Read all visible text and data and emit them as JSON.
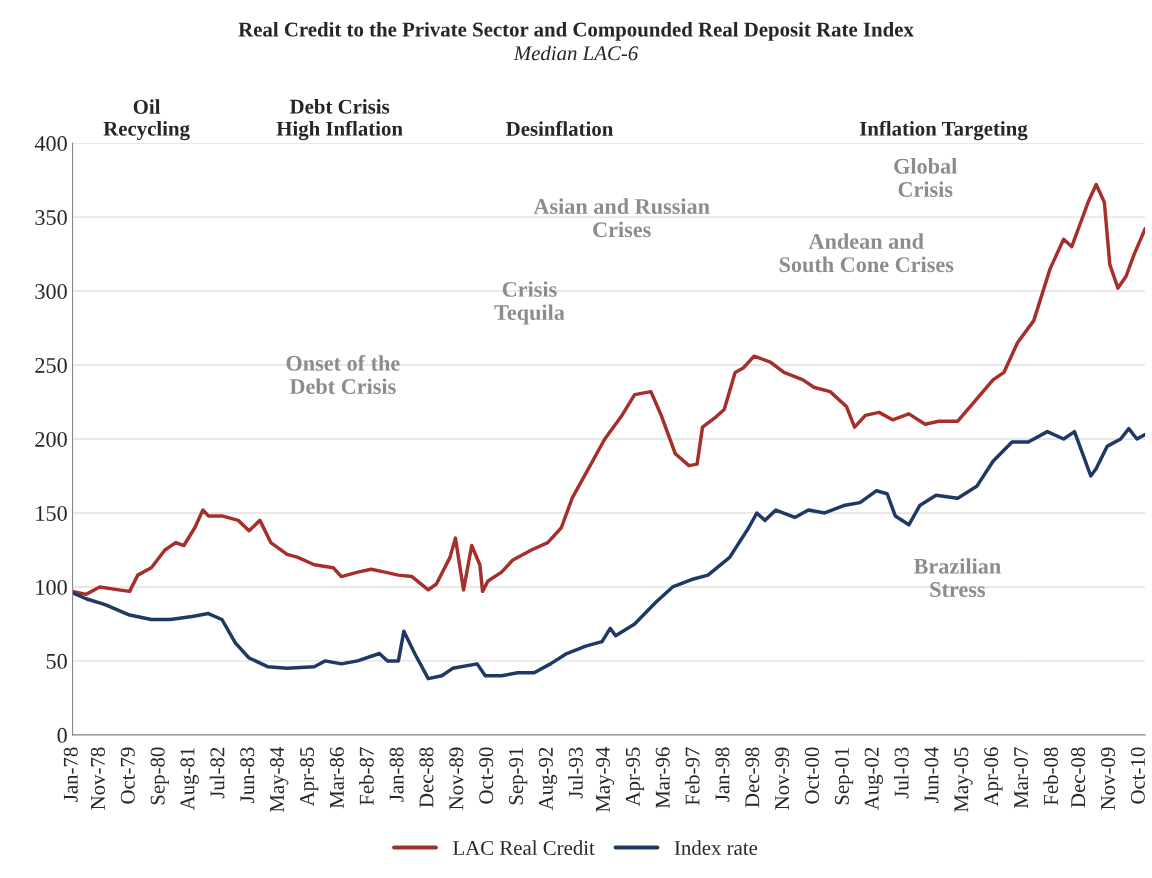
{
  "chart_data": {
    "type": "line",
    "title": "Real Credit to the Private Sector and Compounded Real Deposit Rate Index",
    "subtitle": "Median LAC-6",
    "annotations": [
      "Oil\nRecycling",
      "Debt Crisis\nHigh Inflation",
      "Desinflation",
      "Inflation Targeting",
      "Onset of the\nDebt Crisis",
      "Crisis\nTequila",
      "Asian and Russian\nCrises",
      "Andean and\nSouth Cone Crises",
      "Global\nCrisis",
      "Brazilian\nStress"
    ],
    "series": [
      {
        "name": "LAC Real Credit",
        "color": "#a5302b",
        "x": [
          "1978-01",
          "1978-06",
          "1978-11",
          "1979-06",
          "1979-10",
          "1980-01",
          "1980-06",
          "1980-11",
          "1981-03",
          "1981-06",
          "1981-10",
          "1982-01",
          "1982-03",
          "1982-08",
          "1983-02",
          "1983-06",
          "1983-10",
          "1984-02",
          "1984-08",
          "1984-12",
          "1985-06",
          "1986-01",
          "1986-04",
          "1986-10",
          "1987-03",
          "1987-08",
          "1988-01",
          "1988-06",
          "1988-12",
          "1989-03",
          "1989-08",
          "1989-10",
          "1990-01",
          "1990-04",
          "1990-07",
          "1990-08",
          "1990-10",
          "1991-03",
          "1991-07",
          "1992-02",
          "1992-08",
          "1993-01",
          "1993-05",
          "1993-11",
          "1994-05",
          "1994-11",
          "1995-04",
          "1995-10",
          "1996-02",
          "1996-07",
          "1996-12",
          "1997-03",
          "1997-05",
          "1997-10",
          "1998-01",
          "1998-05",
          "1998-08",
          "1998-12",
          "1999-06",
          "1999-11",
          "2000-06",
          "2000-10",
          "2001-04",
          "2001-10",
          "2002-01",
          "2002-05",
          "2002-10",
          "2003-03",
          "2003-09",
          "2004-03",
          "2004-08",
          "2005-03",
          "2005-09",
          "2006-04",
          "2006-08",
          "2007-01",
          "2007-07",
          "2008-01",
          "2008-06",
          "2008-09",
          "2008-12",
          "2009-03",
          "2009-06",
          "2009-09",
          "2009-11",
          "2010-02",
          "2010-05",
          "2010-08",
          "2010-12"
        ],
        "values": [
          97,
          95,
          100,
          98,
          97,
          108,
          113,
          125,
          130,
          128,
          140,
          152,
          148,
          148,
          145,
          138,
          145,
          130,
          122,
          120,
          115,
          113,
          107,
          110,
          112,
          110,
          108,
          107,
          98,
          102,
          120,
          133,
          98,
          128,
          115,
          97,
          104,
          110,
          118,
          125,
          130,
          140,
          160,
          180,
          200,
          215,
          230,
          232,
          215,
          190,
          182,
          183,
          208,
          215,
          220,
          245,
          248,
          256,
          252,
          245,
          240,
          235,
          232,
          222,
          208,
          216,
          218,
          213,
          217,
          210,
          212,
          212,
          225,
          240,
          245,
          265,
          280,
          315,
          335,
          330,
          345,
          360,
          372,
          360,
          318,
          302,
          310,
          325,
          342
        ]
      },
      {
        "name": "Index rate",
        "color": "#1f3864",
        "x": [
          "1978-01",
          "1978-06",
          "1979-01",
          "1979-10",
          "1980-06",
          "1981-01",
          "1981-09",
          "1982-03",
          "1982-08",
          "1983-01",
          "1983-06",
          "1984-01",
          "1984-08",
          "1985-06",
          "1985-10",
          "1986-04",
          "1986-10",
          "1987-06",
          "1987-09",
          "1988-01",
          "1988-03",
          "1988-07",
          "1988-12",
          "1989-05",
          "1989-09",
          "1990-06",
          "1990-09",
          "1991-03",
          "1991-09",
          "1992-03",
          "1992-09",
          "1993-03",
          "1993-10",
          "1994-04",
          "1994-07",
          "1994-09",
          "1995-04",
          "1995-12",
          "1996-06",
          "1997-01",
          "1997-07",
          "1998-03",
          "1998-10",
          "1999-01",
          "1999-04",
          "1999-08",
          "2000-03",
          "2000-08",
          "2001-02",
          "2001-09",
          "2002-03",
          "2002-09",
          "2003-01",
          "2003-04",
          "2003-09",
          "2004-01",
          "2004-07",
          "2005-03",
          "2005-10",
          "2006-04",
          "2006-11",
          "2007-05",
          "2007-12",
          "2008-06",
          "2008-10",
          "2009-02",
          "2009-04",
          "2009-06",
          "2009-10",
          "2010-03",
          "2010-06",
          "2010-09",
          "2010-12"
        ],
        "values": [
          96,
          92,
          88,
          81,
          78,
          78,
          80,
          82,
          78,
          62,
          52,
          46,
          45,
          46,
          50,
          48,
          50,
          55,
          50,
          50,
          70,
          55,
          38,
          40,
          45,
          48,
          40,
          40,
          42,
          42,
          48,
          55,
          60,
          63,
          72,
          67,
          75,
          90,
          100,
          105,
          108,
          120,
          140,
          150,
          145,
          152,
          147,
          152,
          150,
          155,
          157,
          165,
          163,
          148,
          142,
          155,
          162,
          160,
          168,
          185,
          198,
          198,
          205,
          200,
          205,
          185,
          175,
          180,
          195,
          200,
          207,
          200,
          203
        ]
      }
    ],
    "xlim": [
      "1978-01",
      "2010-12"
    ],
    "xticks": [
      {
        "value": "1978-01",
        "label": "Jan-78"
      },
      {
        "value": "1978-11",
        "label": "Nov-78"
      },
      {
        "value": "1979-10",
        "label": "Oct-79"
      },
      {
        "value": "1980-09",
        "label": "Sep-80"
      },
      {
        "value": "1981-08",
        "label": "Aug-81"
      },
      {
        "value": "1982-07",
        "label": "Jul-82"
      },
      {
        "value": "1983-06",
        "label": "Jun-83"
      },
      {
        "value": "1984-05",
        "label": "May-84"
      },
      {
        "value": "1985-04",
        "label": "Apr-85"
      },
      {
        "value": "1986-03",
        "label": "Mar-86"
      },
      {
        "value": "1987-02",
        "label": "Feb-87"
      },
      {
        "value": "1988-01",
        "label": "Jan-88"
      },
      {
        "value": "1988-12",
        "label": "Dec-88"
      },
      {
        "value": "1989-11",
        "label": "Nov-89"
      },
      {
        "value": "1990-10",
        "label": "Oct-90"
      },
      {
        "value": "1991-09",
        "label": "Sep-91"
      },
      {
        "value": "1992-08",
        "label": "Aug-92"
      },
      {
        "value": "1993-07",
        "label": "Jul-93"
      },
      {
        "value": "1994-05",
        "label": "May-94"
      },
      {
        "value": "1995-04",
        "label": "Apr-95"
      },
      {
        "value": "1996-03",
        "label": "Mar-96"
      },
      {
        "value": "1997-02",
        "label": "Feb-97"
      },
      {
        "value": "1998-01",
        "label": "Jan-98"
      },
      {
        "value": "1998-12",
        "label": "Dec-98"
      },
      {
        "value": "1999-11",
        "label": "Nov-99"
      },
      {
        "value": "2000-10",
        "label": "Oct-00"
      },
      {
        "value": "2001-09",
        "label": "Sep-01"
      },
      {
        "value": "2002-08",
        "label": "Aug-02"
      },
      {
        "value": "2003-07",
        "label": "Jul-03"
      },
      {
        "value": "2004-06",
        "label": "Jun-04"
      },
      {
        "value": "2005-05",
        "label": "May-05"
      },
      {
        "value": "2006-04",
        "label": "Apr-06"
      },
      {
        "value": "2007-03",
        "label": "Mar-07"
      },
      {
        "value": "2008-02",
        "label": "Feb-08"
      },
      {
        "value": "2008-12",
        "label": "Dec-08"
      },
      {
        "value": "2009-11",
        "label": "Nov-09"
      },
      {
        "value": "2010-10",
        "label": "Oct-10"
      }
    ],
    "ylim": [
      0,
      400
    ],
    "yticks": [
      0,
      50,
      100,
      150,
      200,
      250,
      300,
      350,
      400
    ],
    "grid": "y",
    "legend": "bottom",
    "marker": "none",
    "line_style": "solid"
  }
}
